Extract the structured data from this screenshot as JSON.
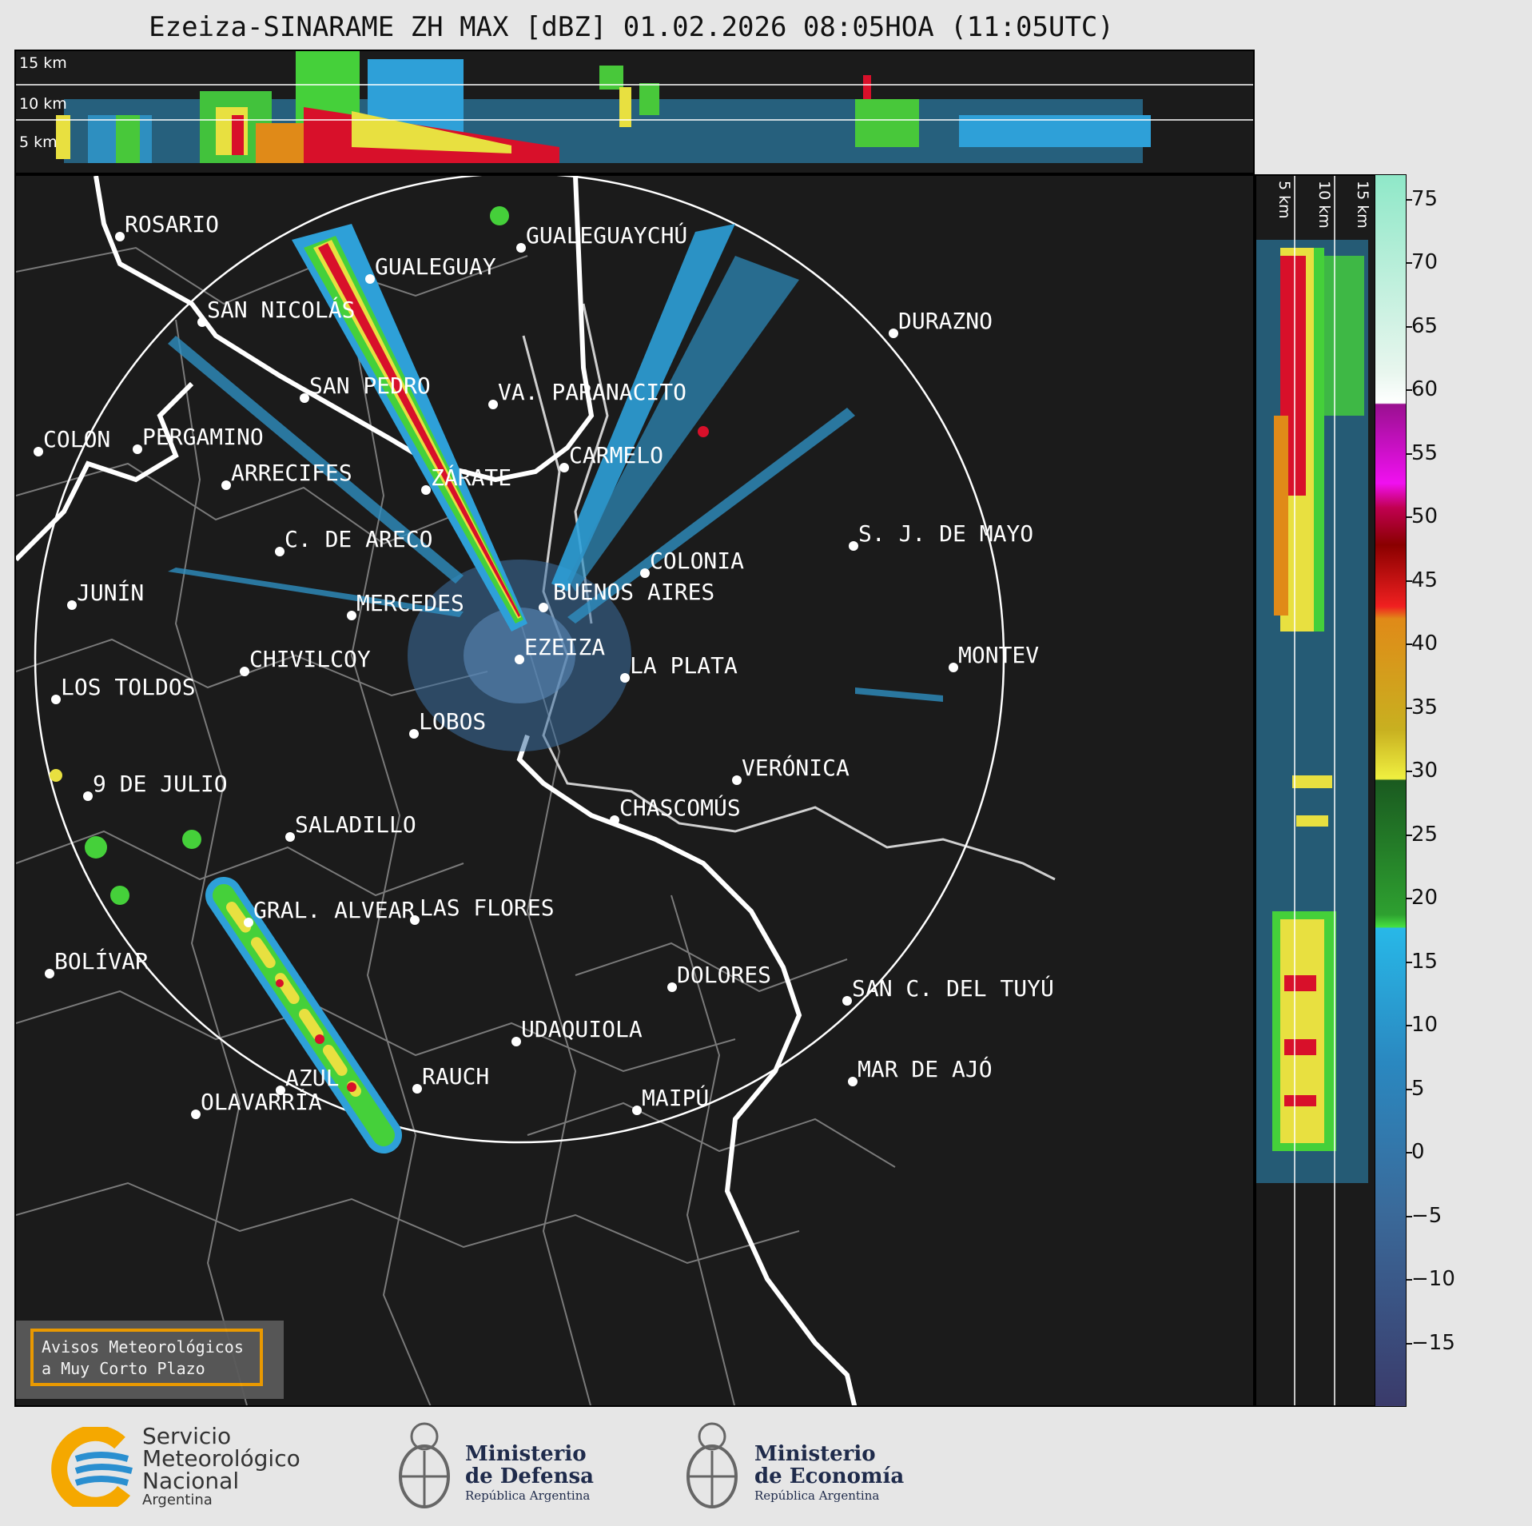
{
  "title": "Ezeiza-SINARAME ZH MAX [dBZ] 01.02.2026 08:05HOA (11:05UTC)",
  "top_panel": {
    "height_labels": [
      "15 km",
      "10 km",
      "5 km"
    ]
  },
  "side_panel": {
    "height_labels": [
      "5 km",
      "10 km",
      "15 km"
    ]
  },
  "cities": [
    {
      "name": "ROSARIO"
    },
    {
      "name": "GUALEGUAYCHÚ"
    },
    {
      "name": "GUALEGUAY"
    },
    {
      "name": "SAN NICOLÁS"
    },
    {
      "name": "DURAZNO"
    },
    {
      "name": "SAN PEDRO"
    },
    {
      "name": "VA. PARANACITO"
    },
    {
      "name": "COLON"
    },
    {
      "name": "PERGAMINO"
    },
    {
      "name": "CARMELO"
    },
    {
      "name": "ARRECIFES"
    },
    {
      "name": "ZÁRATE"
    },
    {
      "name": "S. J. DE MAYO"
    },
    {
      "name": "C. DE ARECO"
    },
    {
      "name": "COLONIA"
    },
    {
      "name": "BUENOS AIRES"
    },
    {
      "name": "JUNÍN"
    },
    {
      "name": "MERCEDES"
    },
    {
      "name": "EZEIZA"
    },
    {
      "name": "MONTEV"
    },
    {
      "name": "CHIVILCOY"
    },
    {
      "name": "LA PLATA"
    },
    {
      "name": "LOS TOLDOS"
    },
    {
      "name": "LOBOS"
    },
    {
      "name": "VERÓNICA"
    },
    {
      "name": "9 DE JULIO"
    },
    {
      "name": "CHASCOMÚS"
    },
    {
      "name": "SALADILLO"
    },
    {
      "name": "GRAL. ALVEAR"
    },
    {
      "name": "LAS FLORES"
    },
    {
      "name": "BOLÍVAR"
    },
    {
      "name": "DOLORES"
    },
    {
      "name": "SAN C. DEL TUYÚ"
    },
    {
      "name": "UDAQUIOLA"
    },
    {
      "name": "RAUCH"
    },
    {
      "name": "MAR DE AJÓ"
    },
    {
      "name": "AZUL"
    },
    {
      "name": "OLAVARRÍA"
    },
    {
      "name": "MAIPÚ"
    }
  ],
  "colorbar": {
    "unit": "dBZ",
    "ticks": [
      "75",
      "70",
      "65",
      "60",
      "55",
      "50",
      "45",
      "40",
      "35",
      "30",
      "25",
      "20",
      "15",
      "10",
      "5",
      "0",
      "−5",
      "−10",
      "−15"
    ],
    "range": [
      -20,
      77
    ]
  },
  "alerts_box": {
    "line1": "Avisos Meteorológicos",
    "line2": "a Muy Corto Plazo"
  },
  "logos": {
    "smn": {
      "line1": "Servicio",
      "line2": "Meteorológico",
      "line3": "Nacional",
      "line4": "Argentina",
      "colors": [
        "#f5a800",
        "#2a8fd0"
      ]
    },
    "defensa": {
      "line1": "Ministerio",
      "line2": "de Defensa",
      "line3": "República Argentina"
    },
    "economia": {
      "line1": "Ministerio",
      "line2": "de Economía",
      "line3": "República Argentina"
    }
  }
}
